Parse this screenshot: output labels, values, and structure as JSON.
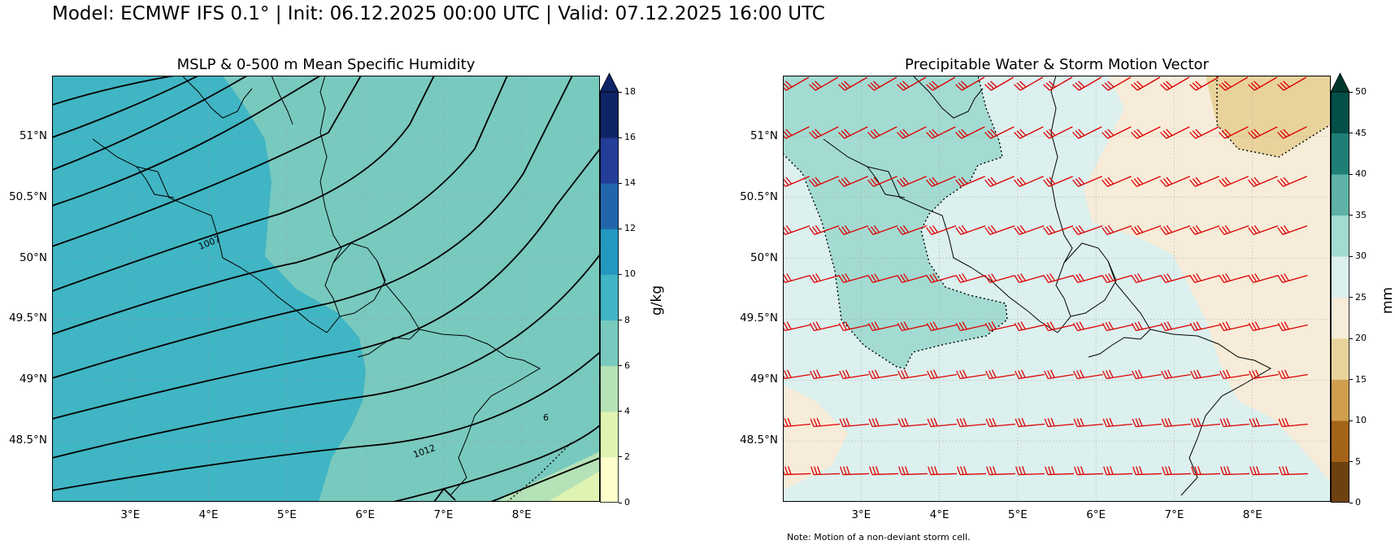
{
  "suptitle": "Model: ECMWF IFS 0.1° | Init: 06.12.2025 00:00 UTC | Valid: 07.12.2025 16:00 UTC",
  "left_panel": {
    "title": "MSLP & 0-500 m Mean Specific Humidity",
    "field": "0-500 m mean specific humidity",
    "colorbar": {
      "label": "g/kg",
      "ticks": [
        "0",
        "2",
        "4",
        "6",
        "8",
        "10",
        "12",
        "14",
        "16",
        "18"
      ],
      "extend": "max",
      "colors": [
        "#ffffcc",
        "#dff3b2",
        "#b5e2b6",
        "#78c9be",
        "#40b5c4",
        "#2498c1",
        "#2166ac",
        "#233d98",
        "#0f2466"
      ],
      "extend_color": "#0f2466"
    },
    "contour_labels": [
      "1007",
      "1012",
      "6"
    ],
    "isobar_color": "#000000"
  },
  "right_panel": {
    "title": "Precipitable Water & Storm Motion Vector",
    "field": "precipitable water",
    "colorbar": {
      "label": "mm",
      "ticks": [
        "0",
        "5",
        "10",
        "15",
        "20",
        "25",
        "30",
        "35",
        "40",
        "45",
        "50"
      ],
      "extend": "max",
      "colors": [
        "#6e4110",
        "#a36418",
        "#cf9e4f",
        "#e8d39c",
        "#f6ecd9",
        "#dcf0ee",
        "#a3dbd2",
        "#5fb2a6",
        "#1f7e76",
        "#025047"
      ],
      "extend_color": "#01392f"
    },
    "barb_color": "#dd0000",
    "note": "Note: Motion of a non-deviant storm cell."
  },
  "axes": {
    "lon_ticks": [
      "3°E",
      "4°E",
      "5°E",
      "6°E",
      "7°E",
      "8°E"
    ],
    "lon_values": [
      3,
      4,
      5,
      6,
      7,
      8
    ],
    "lat_ticks": [
      "51°N",
      "50.5°N",
      "50°N",
      "49.5°N",
      "49°N",
      "48.5°N"
    ],
    "lat_values": [
      51,
      50.5,
      50,
      49.5,
      49,
      48.5
    ],
    "lon_range": [
      2.0,
      9.0
    ],
    "lat_range": [
      48.0,
      51.5
    ]
  }
}
